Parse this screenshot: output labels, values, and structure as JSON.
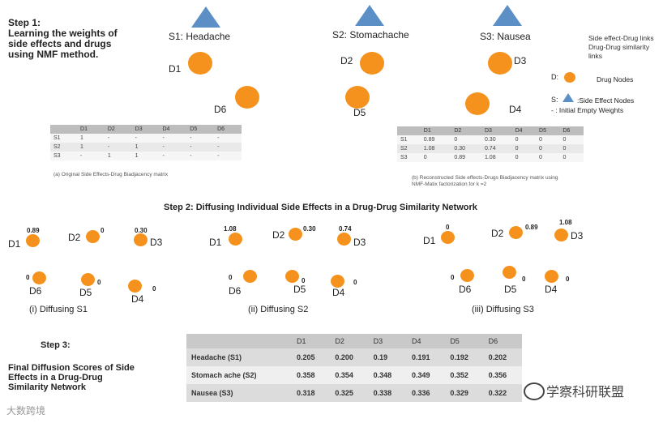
{
  "step1": {
    "title": [
      "Step 1:",
      "Learning the weights of",
      "side effects and drugs",
      "using NMF method."
    ]
  },
  "side_effects": [
    {
      "label": "S1: Headache"
    },
    {
      "label": "S2: Stomachache"
    },
    {
      "label": "S3: Nausea"
    }
  ],
  "drugs": [
    "D1",
    "D2",
    "D3",
    "D4",
    "D5",
    "D6"
  ],
  "legend": {
    "lines": [
      "Side effect-Drug links",
      "Drug-Drug similarity links"
    ],
    "drug_node": "D:",
    "drug_node_text": "Drug Nodes",
    "se_node": "S:",
    "se_node_text": ":Side Effect Nodes",
    "empty": "- : Initial Empty Weights"
  },
  "matrix_a": {
    "headers": [
      "",
      "D1",
      "D2",
      "D3",
      "D4",
      "D5",
      "D6"
    ],
    "rows": [
      [
        "S1",
        "1",
        "-",
        "-",
        "-",
        "-",
        "-"
      ],
      [
        "S2",
        "1",
        "-",
        "1",
        "-",
        "-",
        "-"
      ],
      [
        "S3",
        "-",
        "1",
        "1",
        "-",
        "-",
        "-"
      ]
    ],
    "caption": "(a) Original Side Effects-Drug Biadjacency matrix"
  },
  "matrix_b": {
    "headers": [
      "",
      "D1",
      "D2",
      "D3",
      "D4",
      "D5",
      "D6"
    ],
    "rows": [
      [
        "S1",
        "0.89",
        "0",
        "0.30",
        "0",
        "0",
        "0"
      ],
      [
        "S2",
        "1.08",
        "0.30",
        "0.74",
        "0",
        "0",
        "0"
      ],
      [
        "S3",
        "0",
        "0.89",
        "1.08",
        "0",
        "0",
        "0"
      ]
    ],
    "caption": [
      "(b) Reconstructed Side effects-Drugs Biadjacency matrix using",
      "NMF-Matix factorization for k =2"
    ]
  },
  "step2": {
    "title": "Step 2: Diffusing Individual Side Effects in a Drug-Drug Similarity Network",
    "panels": [
      {
        "caption": "(i) Diffusing S1",
        "weights": {
          "D1": "0.89",
          "D2": "0",
          "D3": "0.30",
          "D4": "0",
          "D5": "0",
          "D6": "0"
        }
      },
      {
        "caption": "(ii) Diffusing S2",
        "weights": {
          "D1": "1.08",
          "D2": "0.30",
          "D3": "0.74",
          "D4": "0",
          "D5": "0",
          "D6": "0"
        }
      },
      {
        "caption": "(iii) Diffusing S3",
        "weights": {
          "D1": "0",
          "D2": "0.89",
          "D3": "1.08",
          "D4": "0",
          "D5": "0",
          "D6": "0"
        }
      }
    ]
  },
  "step3": {
    "title": "Step 3:",
    "desc": [
      "Final Diffusion Scores of  Side",
      "Effects in a Drug-Drug",
      "Similarity Network"
    ],
    "table": {
      "headers": [
        "",
        "D1",
        "D2",
        "D3",
        "D4",
        "D5",
        "D6"
      ],
      "rows": [
        [
          "Headache (S1)",
          "0.205",
          "0.200",
          "0.19",
          "0.191",
          "0.192",
          "0.202"
        ],
        [
          "Stomach ache (S2)",
          "0.358",
          "0.354",
          "0.348",
          "0.349",
          "0.352",
          "0.356"
        ],
        [
          "Nausea (S3)",
          "0.318",
          "0.325",
          "0.338",
          "0.336",
          "0.329",
          "0.322"
        ]
      ]
    }
  },
  "watermarks": {
    "left": "大数跨境",
    "right": "学察科研联盟"
  },
  "colors": {
    "node": "#f5921e",
    "triangle": "#5b8fc6"
  }
}
